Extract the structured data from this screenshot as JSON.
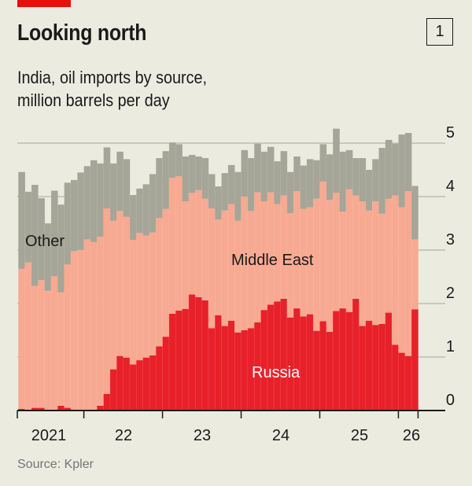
{
  "header": {
    "title": "Looking north",
    "chart_number": "1",
    "subtitle_line1": "India, oil imports by source,",
    "subtitle_line2": "million barrels per day"
  },
  "footer": {
    "source": "Source: Kpler"
  },
  "colors": {
    "background": "#ECEBE0",
    "russia": "#E8202A",
    "middle_east": "#F7A991",
    "other": "#A5A598",
    "accent": "#E3120B"
  },
  "chart_data": {
    "type": "bar",
    "stacked": true,
    "title": "Looking north",
    "subtitle": "India, oil imports by source, million barrels per day",
    "ylabel": "million barrels per day",
    "ylim": [
      0,
      5
    ],
    "yticks": [
      "0",
      "1",
      "2",
      "3",
      "4",
      "5"
    ],
    "xtick_labels": [
      "2021",
      "22",
      "23",
      "24",
      "25",
      "26"
    ],
    "x_start": "2021-03",
    "x_end": "2026-03",
    "frequency": "monthly",
    "grid": true,
    "series": [
      {
        "name": "Russia",
        "label": "Russia",
        "values": [
          0.03,
          0,
          0.05,
          0.05,
          0,
          0.01,
          0.09,
          0.05,
          0.01,
          0.01,
          0.01,
          0.01,
          0.09,
          0.31,
          0.77,
          1.02,
          0.99,
          0.86,
          0.94,
          0.99,
          1.03,
          1.2,
          1.38,
          1.81,
          1.87,
          1.9,
          2.17,
          2.12,
          2.06,
          1.54,
          1.78,
          1.58,
          1.68,
          1.46,
          1.5,
          1.54,
          1.65,
          1.88,
          1.98,
          2.04,
          2.09,
          1.74,
          1.91,
          1.76,
          1.8,
          1.49,
          1.67,
          1.47,
          1.86,
          1.91,
          1.84,
          2.09,
          1.58,
          1.68,
          1.6,
          1.62,
          1.83,
          1.23,
          1.08,
          1.02,
          1.89
        ]
      },
      {
        "name": "Middle East",
        "label": "Middle East",
        "values": [
          2.62,
          2.77,
          2.28,
          2.39,
          2.24,
          2.5,
          2.12,
          2.68,
          2.97,
          2.99,
          3.19,
          3.14,
          3.16,
          3.47,
          2.78,
          2.71,
          2.63,
          2.33,
          2.38,
          2.28,
          2.3,
          2.4,
          2.39,
          2.54,
          2.51,
          2.01,
          1.9,
          2.0,
          1.9,
          2.24,
          1.79,
          2.16,
          2.18,
          2.09,
          2.5,
          2.19,
          2.43,
          2.03,
          2.1,
          1.82,
          1.93,
          1.95,
          2.19,
          2.01,
          2.0,
          2.47,
          2.61,
          2.47,
          2.21,
          1.81,
          2.3,
          1.93,
          2.33,
          2.06,
          2.31,
          2.06,
          2.13,
          2.79,
          2.72,
          3.08,
          1.31
        ]
      },
      {
        "name": "Other",
        "label": "Other",
        "values": [
          1.81,
          1.32,
          1.89,
          1.53,
          1.26,
          1.6,
          1.64,
          1.53,
          1.33,
          1.45,
          1.37,
          1.53,
          1.37,
          1.14,
          1.07,
          1.11,
          1.08,
          0.84,
          0.83,
          0.96,
          1.09,
          1.12,
          1.08,
          0.66,
          0.6,
          0.84,
          0.71,
          0.63,
          0.76,
          0.64,
          0.62,
          0.7,
          0.73,
          0.91,
          0.87,
          0.99,
          0.91,
          0.93,
          0.85,
          0.8,
          0.83,
          0.77,
          0.65,
          0.81,
          0.9,
          0.72,
          0.7,
          0.85,
          1.2,
          1.12,
          0.73,
          0.7,
          0.81,
          0.76,
          0.79,
          1.23,
          1.1,
          0.97,
          1.36,
          1.09,
          1.0
        ]
      }
    ]
  }
}
